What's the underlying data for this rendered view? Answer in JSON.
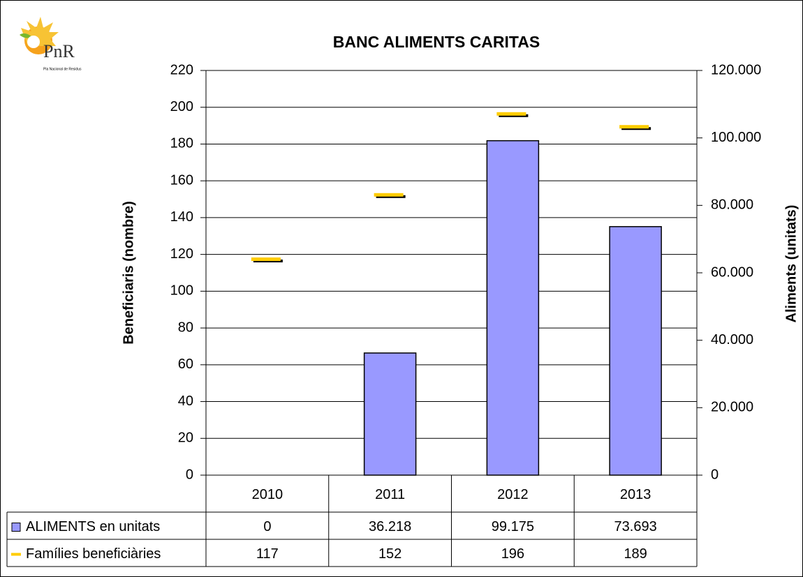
{
  "chart_data": {
    "type": "bar",
    "title": "BANC ALIMENTS CARITAS",
    "logo": {
      "text": "PnR",
      "subtitle": "Pla Nacional de Residus"
    },
    "y_label": "Beneficiaris (nombre)",
    "y2_label": "Aliments (unitats)",
    "categories": [
      "2010",
      "2011",
      "2012",
      "2013"
    ],
    "series": [
      {
        "name": "ALIMENTS en unitats",
        "type": "bar",
        "color": "#9999ff",
        "axis": "y2",
        "values": [
          0,
          36218,
          99175,
          73693
        ],
        "value_labels": [
          "0",
          "36.218",
          "99.175",
          "73.693"
        ]
      },
      {
        "name": "Famílies beneficiàries",
        "type": "marker",
        "color": "#ffcc00",
        "axis": "y",
        "values": [
          117,
          152,
          196,
          189
        ]
      }
    ],
    "ylim": [
      0,
      220
    ],
    "yticks": [
      0,
      20,
      40,
      60,
      80,
      100,
      120,
      140,
      160,
      180,
      200,
      220
    ],
    "y2lim": [
      0,
      120000
    ],
    "y2ticks": [
      0,
      {
        "value": 20000,
        "label": "20.000"
      },
      {
        "value": 40000,
        "label": "40.000"
      },
      {
        "value": 60000,
        "label": "60.000"
      },
      {
        "value": 80000,
        "label": "80.000"
      },
      {
        "value": 100000,
        "label": "100.000"
      },
      {
        "value": 120000,
        "label": "120.000"
      }
    ],
    "grid": true
  }
}
